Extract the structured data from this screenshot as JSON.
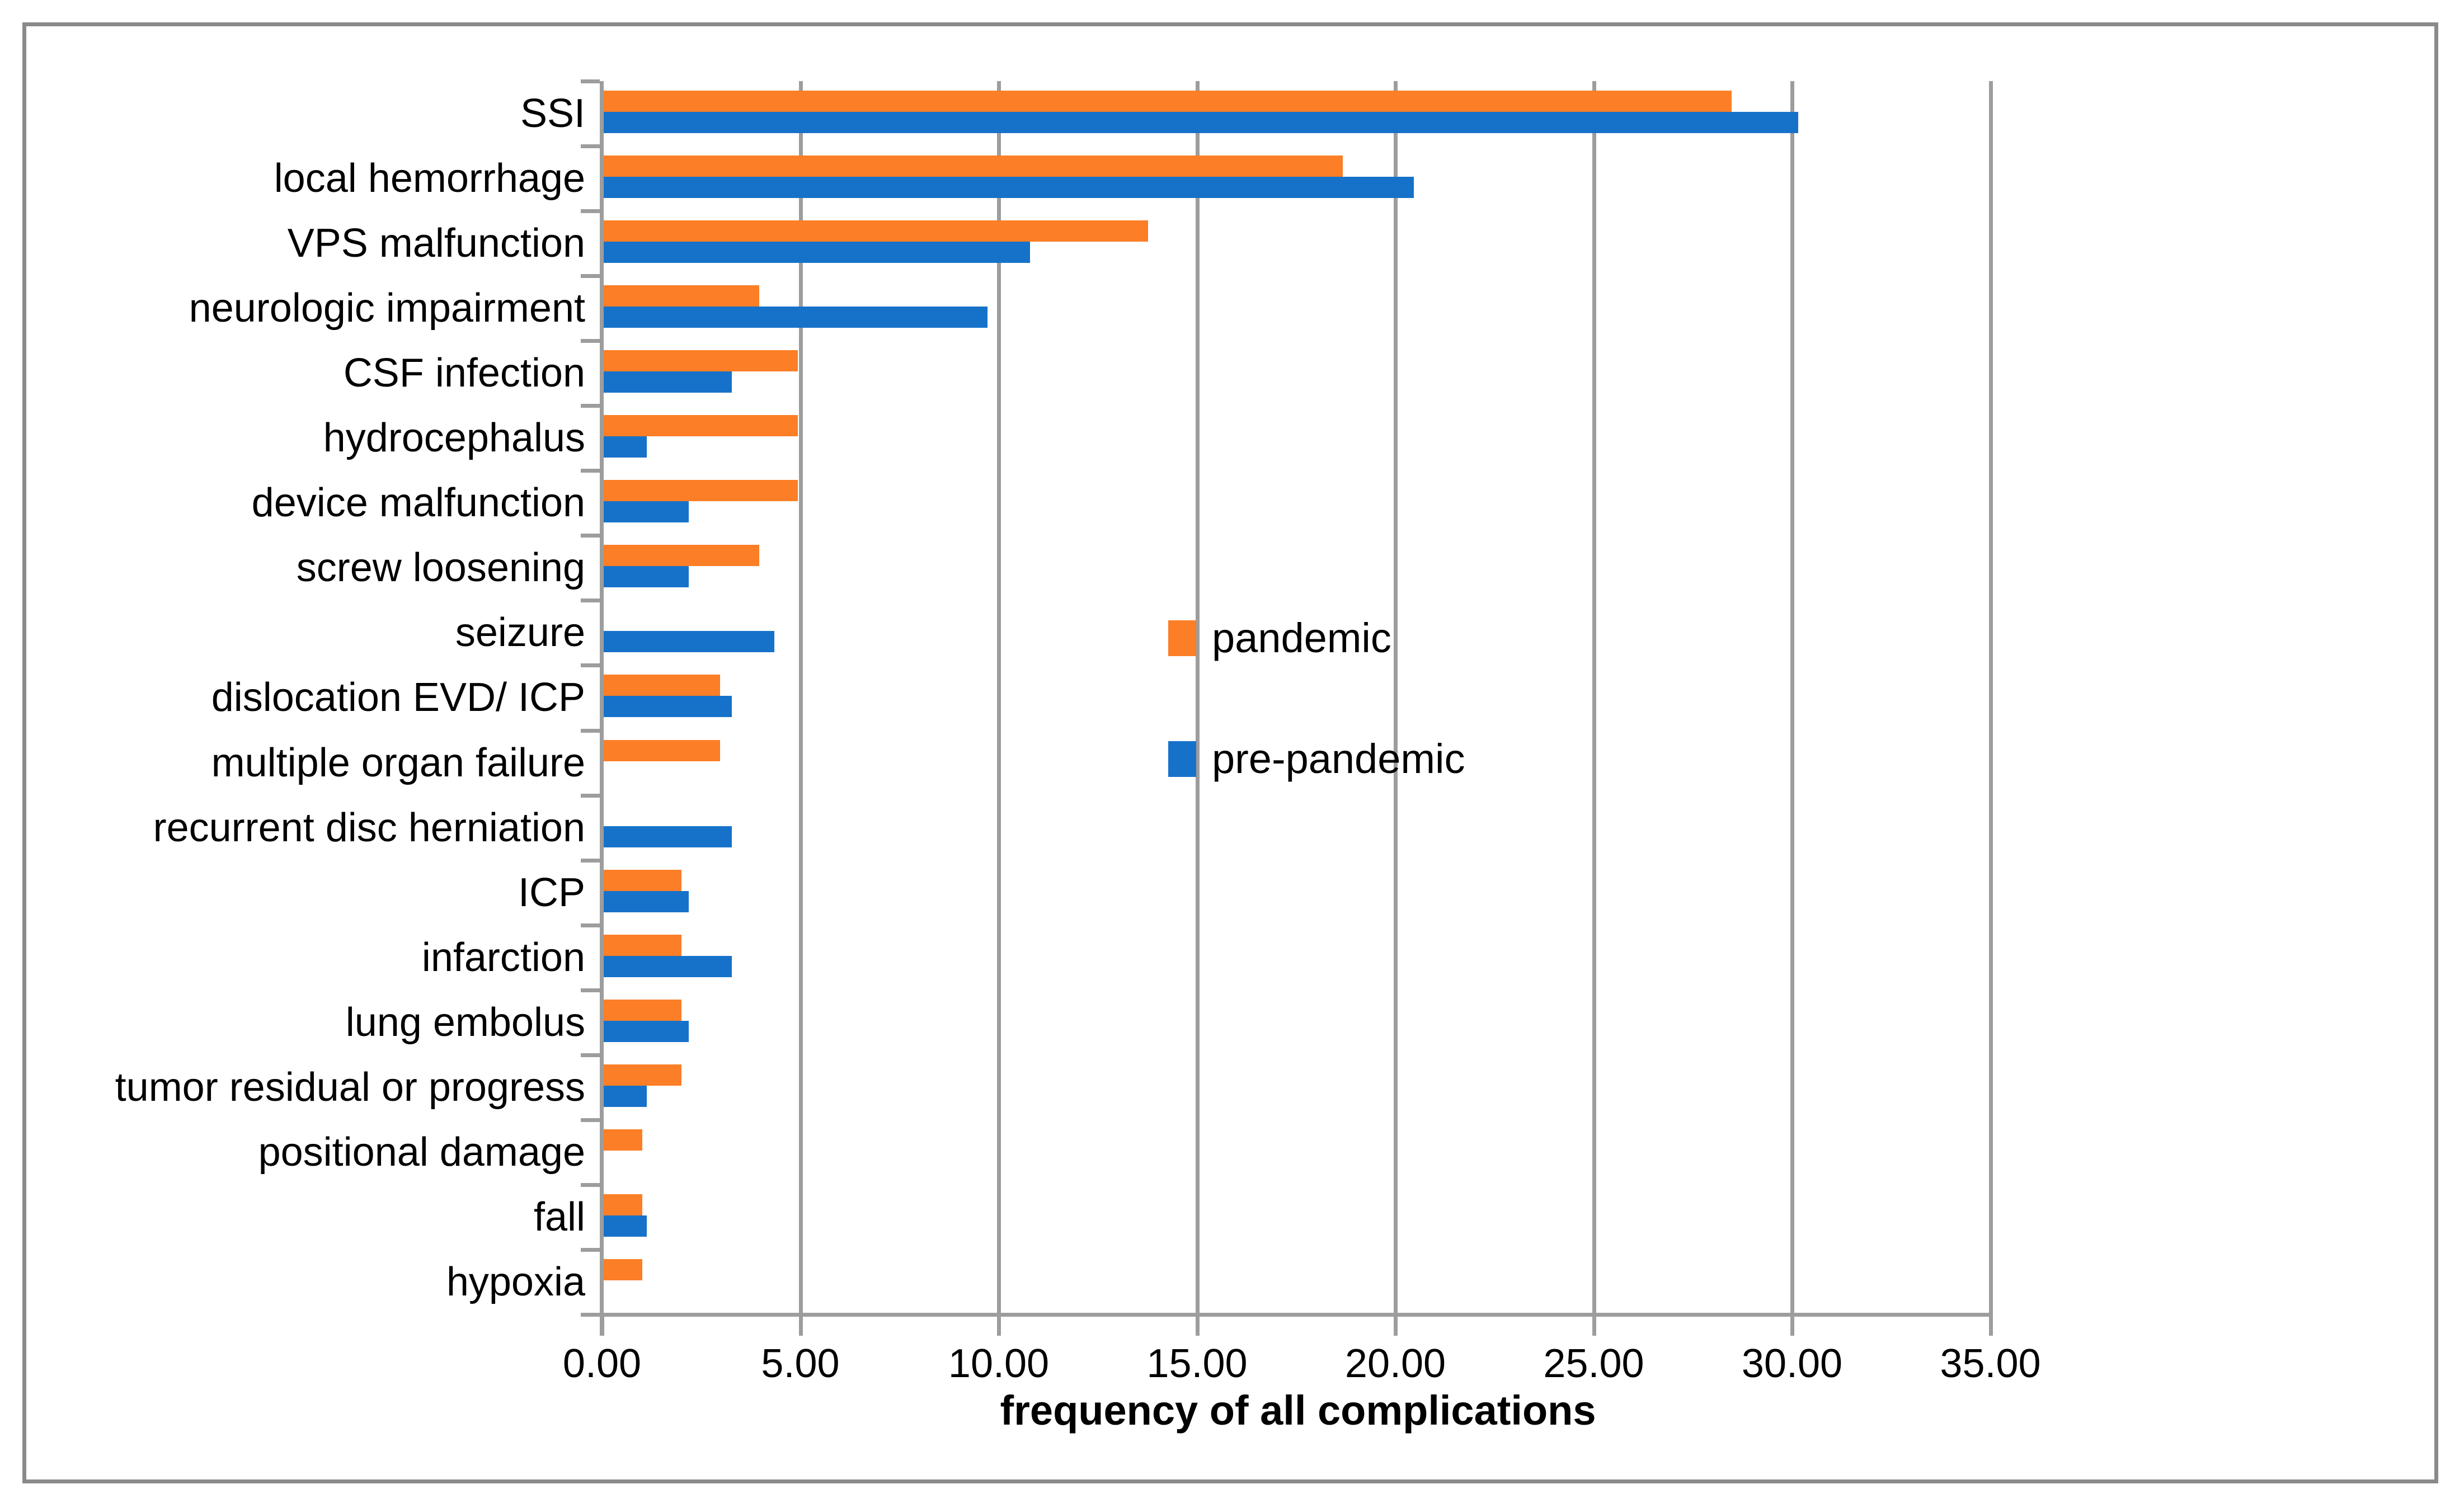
{
  "chart_data": {
    "type": "bar",
    "orientation": "horizontal",
    "title": "",
    "xlabel": "frequency of all complications",
    "ylabel": "",
    "xlim": [
      0,
      35
    ],
    "x_ticks": [
      0,
      5,
      10,
      15,
      20,
      25,
      30,
      35
    ],
    "x_tick_labels": [
      "0.00",
      "5.00",
      "10.00",
      "15.00",
      "20.00",
      "25.00",
      "30.00",
      "35.00"
    ],
    "grid": "vertical-gridlines-on",
    "legend_position": "center-of-plot",
    "categories": [
      "SSI",
      "local hemorrhage",
      "VPS malfunction",
      "neurologic impairment",
      "CSF infection",
      "hydrocephalus",
      "device malfunction",
      "screw loosening",
      "seizure",
      "dislocation EVD/ ICP",
      "multiple organ failure",
      "recurrent disc herniation",
      "ICP",
      "infarction",
      "lung embolus",
      "tumor residual or progress",
      "positional damage",
      "fall",
      "hypoxia"
    ],
    "series": [
      {
        "name": "pandemic",
        "color": "#fc7e26",
        "values": [
          28.43,
          18.63,
          13.73,
          3.92,
          4.9,
          4.9,
          4.9,
          3.92,
          0,
          2.94,
          2.94,
          0,
          1.96,
          1.96,
          1.96,
          1.96,
          0.98,
          0.98,
          0.98
        ]
      },
      {
        "name": "pre-pandemic",
        "color": "#1672c9",
        "values": [
          30.11,
          20.43,
          10.75,
          9.68,
          3.23,
          1.08,
          2.15,
          2.15,
          4.3,
          3.23,
          0,
          3.23,
          2.15,
          3.23,
          2.15,
          1.08,
          0,
          1.08,
          0
        ]
      }
    ]
  },
  "style_colors": {
    "gridline": "#9d9d9d",
    "axis": "#9d9d9d",
    "outer_border": "#8a8a8a",
    "background": "#ffffff",
    "text": "#000000"
  }
}
